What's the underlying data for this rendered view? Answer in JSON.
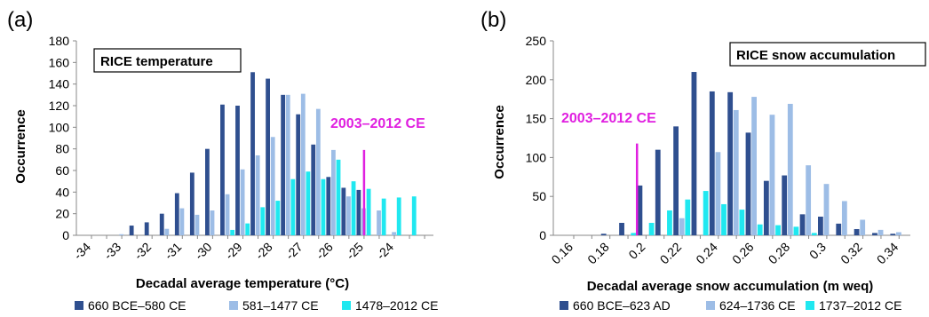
{
  "colors": {
    "series1": "#2f4f8f",
    "series2": "#9dbde6",
    "series3": "#20e8f0",
    "annotation": "#e020e0"
  },
  "chart_data": [
    {
      "panel_label": "(a)",
      "type": "bar",
      "title": "RICE temperature",
      "xlabel": "Decadal average temperature (°C)",
      "ylabel": "Occurrence",
      "ylim": [
        0,
        180
      ],
      "yticks": [
        "0",
        "20",
        "40",
        "60",
        "80",
        "100",
        "120",
        "140",
        "160",
        "180"
      ],
      "xtick_labels": [
        "-34",
        "-33",
        "-32",
        "-31",
        "-30",
        "-29",
        "-28",
        "-27",
        "-26",
        "-25",
        "-24"
      ],
      "x": [
        -33.5,
        -33,
        -32.5,
        -32,
        -31.5,
        -31,
        -30.5,
        -30,
        -29.5,
        -29,
        -28.5,
        -28,
        -27.5,
        -27,
        -26.5,
        -26,
        -25.5,
        -25,
        -24.5,
        -24,
        -23.5,
        -23
      ],
      "series": [
        {
          "name": "660 BCE–580 CE",
          "values": [
            0,
            0,
            9,
            12,
            20,
            39,
            58,
            80,
            121,
            120,
            151,
            145,
            130,
            112,
            84,
            54,
            44,
            42,
            0,
            0,
            0,
            0
          ]
        },
        {
          "name": "581–1477 CE",
          "values": [
            0,
            1,
            0,
            0,
            6,
            25,
            19,
            23,
            38,
            61,
            74,
            91,
            130,
            131,
            117,
            79,
            36,
            25,
            23,
            3,
            0,
            0
          ]
        },
        {
          "name": "1478–2012 CE",
          "values": [
            0,
            0,
            0,
            0,
            0,
            0,
            0,
            0,
            5,
            11,
            26,
            32,
            52,
            59,
            52,
            70,
            50,
            43,
            34,
            35,
            36,
            0
          ]
        }
      ],
      "grid": false,
      "legend": "bottom",
      "annotation": {
        "text": "2003–2012 CE",
        "x": -25,
        "y_top": 79
      }
    },
    {
      "panel_label": "(b)",
      "type": "bar",
      "title": "RICE snow accumulation",
      "xlabel": "Decadal average snow accumulation (m weq)",
      "ylabel": "Occurrence",
      "ylim": [
        0,
        250
      ],
      "yticks": [
        "0",
        "50",
        "100",
        "150",
        "200",
        "250"
      ],
      "xtick_labels": [
        "0.16",
        "0.18",
        "0.2",
        "0.22",
        "0.24",
        "0.26",
        "0.28",
        "0.3",
        "0.32",
        "0.34"
      ],
      "x": [
        0.17,
        0.18,
        0.19,
        0.2,
        0.21,
        0.22,
        0.23,
        0.24,
        0.25,
        0.26,
        0.27,
        0.28,
        0.29,
        0.3,
        0.31,
        0.32,
        0.33,
        0.34
      ],
      "series": [
        {
          "name": "660 BCE–623 AD",
          "values": [
            0,
            2,
            16,
            64,
            110,
            140,
            210,
            185,
            184,
            132,
            70,
            77,
            27,
            24,
            15,
            8,
            3,
            2
          ]
        },
        {
          "name": "624–1736 CE",
          "values": [
            0,
            0,
            0,
            0,
            0,
            22,
            0,
            107,
            161,
            178,
            155,
            169,
            90,
            66,
            44,
            20,
            7,
            4
          ]
        },
        {
          "name": "1737–2012 CE",
          "values": [
            0,
            0,
            3,
            16,
            32,
            46,
            57,
            40,
            33,
            14,
            13,
            11,
            3,
            0,
            0,
            0,
            0,
            0
          ]
        }
      ],
      "grid": false,
      "legend": "bottom",
      "annotation": {
        "text": "2003–2012 CE",
        "x": 0.195,
        "y_top": 118
      }
    }
  ]
}
